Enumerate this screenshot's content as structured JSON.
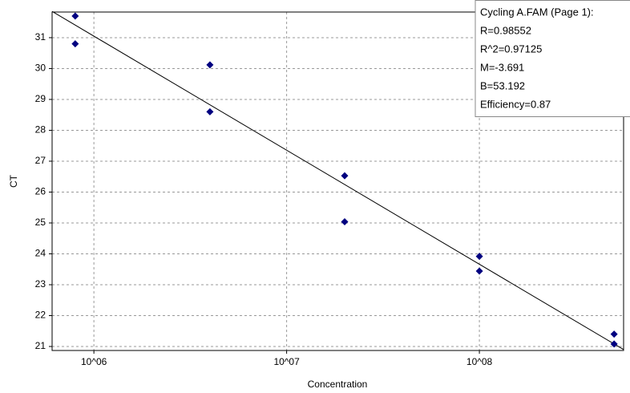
{
  "chart_data": {
    "type": "scatter",
    "x_label": "Concentration",
    "y_label": "CT",
    "x": [
      800000,
      800000,
      4000000,
      4000000,
      20000000,
      20000000,
      100000000,
      100000000,
      500000000,
      500000000
    ],
    "series": [
      {
        "color": "#000080",
        "values": [
          31.7,
          30.8,
          30.12,
          28.6,
          26.53,
          25.04,
          23.92,
          23.44,
          21.4,
          21.08
        ]
      }
    ],
    "fit_line": {
      "x": [
        607000,
        560000000
      ],
      "values": [
        31.85,
        20.9
      ],
      "color": "#000000"
    },
    "xlim": [
      607000,
      560000000
    ],
    "ylim": [
      20.87,
      31.83
    ],
    "x_log": true,
    "xticks": [
      {
        "value": 1000000,
        "label": "10^06"
      },
      {
        "value": 10000000,
        "label": "10^07"
      },
      {
        "value": 100000000,
        "label": "10^08"
      }
    ],
    "yticks": [
      21,
      22,
      23,
      24,
      25,
      26,
      27,
      28,
      29,
      30,
      31
    ],
    "grid": true,
    "annotation": [
      "Cycling A.FAM (Page 1):",
      "R=0.98552",
      "R^2=0.97125",
      "M=-3.691",
      "B=53.192",
      "Efficiency=0.87"
    ]
  }
}
